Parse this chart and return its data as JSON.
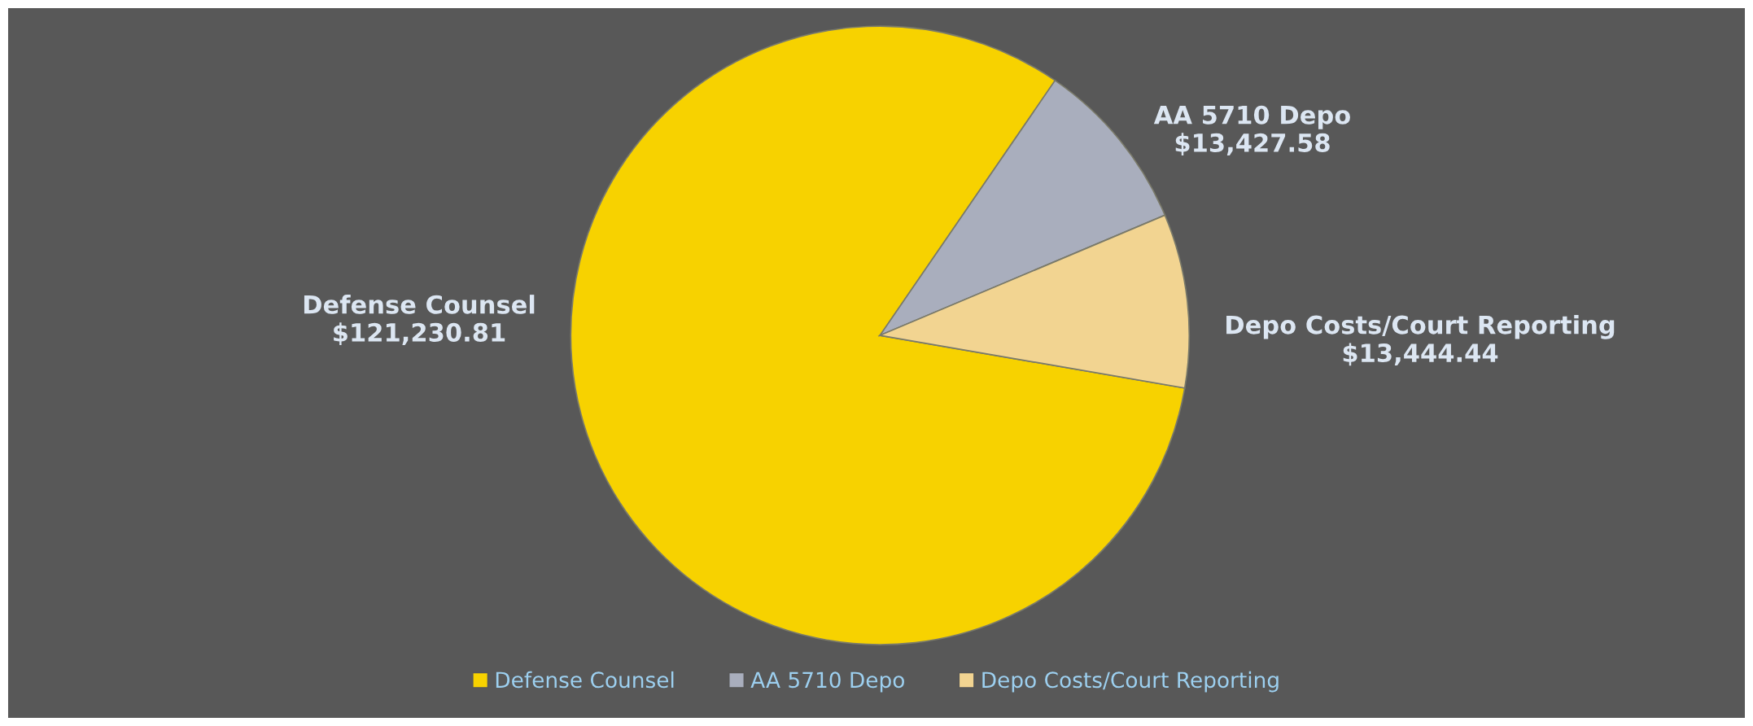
{
  "chart_data": {
    "type": "pie",
    "categories": [
      "Defense Counsel",
      "AA 5710 Depo",
      "Depo Costs/Court Reporting"
    ],
    "values": [
      121230.81,
      13427.58,
      13444.44
    ],
    "value_labels": [
      "$121,230.81",
      "$13,427.58",
      "$13,444.44"
    ],
    "colors": [
      "#f7d200",
      "#a9aebd",
      "#f2d491"
    ],
    "legend": "bottom"
  }
}
